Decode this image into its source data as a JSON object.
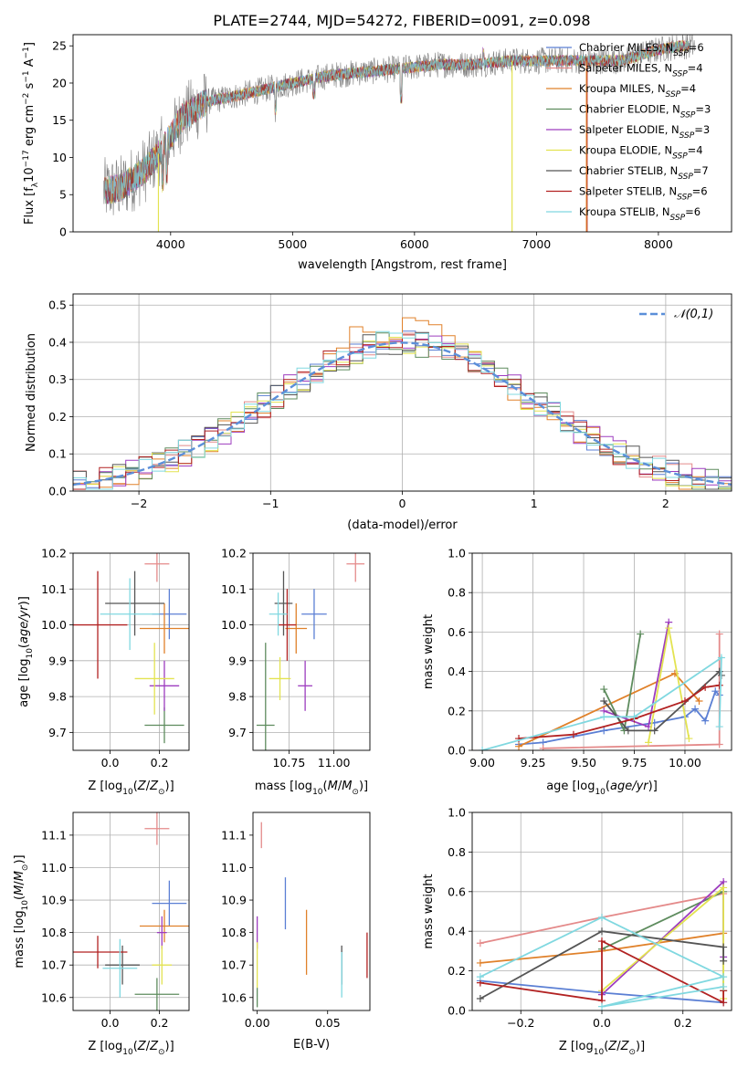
{
  "figure_title": "PLATE=2744, MJD=54272, FIBERID=0091, z=0.098",
  "chart_data": [
    {
      "id": "spectrum",
      "type": "line",
      "xlabel": "wavelength [Angstrom, rest frame]",
      "ylabel": "Flux [f_λ10^-17 erg cm^-2 s^-1 A^-1]",
      "xlim": [
        3200,
        8600
      ],
      "ylim": [
        0,
        26.5
      ],
      "xticks": [
        4000,
        5000,
        6000,
        7000,
        8000
      ],
      "yticks": [
        0,
        5,
        10,
        15,
        20,
        25
      ],
      "grid": false,
      "legend_position": "top-right",
      "observed_flux_color": "#808080",
      "continuum_shape": {
        "x": [
          3450,
          3600,
          3800,
          3950,
          4100,
          4300,
          4600,
          5000,
          5300,
          5600,
          5900,
          6200,
          6500,
          6800,
          7100,
          7400,
          7700,
          8000,
          8200,
          8300
        ],
        "y": [
          5.5,
          6.0,
          8.5,
          11.5,
          15.5,
          17.5,
          18.5,
          20.0,
          21.0,
          21.5,
          22.0,
          22.5,
          22.5,
          23.0,
          23.0,
          23.0,
          23.0,
          24.5,
          25.0,
          25.0
        ]
      },
      "series": [
        {
          "name": "Chabrier MILES, N_SSP=6",
          "color": "#5b7fd4"
        },
        {
          "name": "Salpeter MILES, N_SSP=4",
          "color": "#e48a8a"
        },
        {
          "name": "Kroupa MILES, N_SSP=4",
          "color": "#e0812a"
        },
        {
          "name": "Chabrier ELODIE, N_SSP=3",
          "color": "#5e8c5e"
        },
        {
          "name": "Salpeter ELODIE, N_SSP=3",
          "color": "#9d3dbf"
        },
        {
          "name": "Kroupa ELODIE, N_SSP=4",
          "color": "#e3e351"
        },
        {
          "name": "Chabrier STELIB, N_SSP=7",
          "color": "#555555"
        },
        {
          "name": "Salpeter STELIB, N_SSP=6",
          "color": "#b22222"
        },
        {
          "name": "Kroupa STELIB, N_SSP=6",
          "color": "#80d8e0"
        }
      ]
    },
    {
      "id": "residuals",
      "type": "step",
      "xlabel": "(data-model)/error",
      "ylabel": "Normed distribution",
      "xlim": [
        -2.5,
        2.5
      ],
      "ylim": [
        0,
        0.53
      ],
      "xticks": [
        -2,
        -1,
        0,
        1,
        2
      ],
      "yticks": [
        0.0,
        0.1,
        0.2,
        0.3,
        0.4,
        0.5
      ],
      "grid": true,
      "legend_position": "top-right",
      "gaussian_label": "𝒩(0,1)",
      "gaussian_color": "#5b8fd9",
      "bin_width": 0.1
    },
    {
      "id": "age_vs_Z",
      "type": "errorbar",
      "xlabel": "Z [log10(Z/Z⊙)]",
      "ylabel": "age [log10(age/yr)]",
      "xlim": [
        -0.15,
        0.32
      ],
      "ylim": [
        9.65,
        10.2
      ],
      "xticks": [
        0.0,
        0.2
      ],
      "yticks": [
        9.7,
        9.8,
        9.9,
        10.0,
        10.1,
        10.2
      ],
      "grid": true,
      "points": [
        {
          "x": 0.24,
          "y": 10.03,
          "xerr": 0.07,
          "yerr": 0.07,
          "color": "#5b7fd4"
        },
        {
          "x": 0.19,
          "y": 10.17,
          "xerr": 0.05,
          "yerr": 0.05,
          "color": "#e48a8a"
        },
        {
          "x": 0.22,
          "y": 9.99,
          "xerr": 0.1,
          "yerr": 0.07,
          "color": "#e0812a"
        },
        {
          "x": 0.22,
          "y": 9.72,
          "xerr": 0.08,
          "yerr": 0.05,
          "color": "#5e8c5e"
        },
        {
          "x": 0.22,
          "y": 9.83,
          "xerr": 0.06,
          "yerr": 0.07,
          "color": "#9d3dbf"
        },
        {
          "x": 0.18,
          "y": 9.85,
          "xerr": 0.08,
          "yerr": 0.1,
          "color": "#e3e351"
        },
        {
          "x": 0.1,
          "y": 10.06,
          "xerr": 0.12,
          "yerr": 0.09,
          "color": "#555555"
        },
        {
          "x": -0.05,
          "y": 10.0,
          "xerr": 0.12,
          "yerr": 0.15,
          "color": "#b22222"
        },
        {
          "x": 0.08,
          "y": 10.03,
          "xerr": 0.12,
          "yerr": 0.1,
          "color": "#80d8e0"
        }
      ]
    },
    {
      "id": "age_vs_mass",
      "type": "errorbar",
      "xlabel": "mass [log10(M/M⊙)]",
      "ylabel": "",
      "xlim": [
        10.55,
        11.2
      ],
      "ylim": [
        9.65,
        10.2
      ],
      "xticks": [
        10.75,
        11.0
      ],
      "yticks": [
        9.7,
        9.8,
        9.9,
        10.0,
        10.1,
        10.2
      ],
      "grid": true,
      "points": [
        {
          "x": 10.89,
          "y": 10.03,
          "xerr": 0.07,
          "yerr": 0.07,
          "color": "#5b7fd4"
        },
        {
          "x": 11.12,
          "y": 10.17,
          "xerr": 0.05,
          "yerr": 0.05,
          "color": "#e48a8a"
        },
        {
          "x": 10.79,
          "y": 9.99,
          "xerr": 0.06,
          "yerr": 0.07,
          "color": "#e0812a"
        },
        {
          "x": 10.62,
          "y": 9.72,
          "xerr": 0.05,
          "yerr": 0.23,
          "color": "#5e8c5e"
        },
        {
          "x": 10.84,
          "y": 9.83,
          "xerr": 0.04,
          "yerr": 0.07,
          "color": "#9d3dbf"
        },
        {
          "x": 10.7,
          "y": 9.85,
          "xerr": 0.06,
          "yerr": 0.06,
          "color": "#e3e351"
        },
        {
          "x": 10.72,
          "y": 10.06,
          "xerr": 0.05,
          "yerr": 0.09,
          "color": "#555555"
        },
        {
          "x": 10.74,
          "y": 10.0,
          "xerr": 0.05,
          "yerr": 0.1,
          "color": "#b22222"
        },
        {
          "x": 10.69,
          "y": 10.03,
          "xerr": 0.05,
          "yerr": 0.06,
          "color": "#80d8e0"
        }
      ]
    },
    {
      "id": "mass_weight_vs_age",
      "type": "line",
      "xlabel": "age [log10(age/yr)]",
      "ylabel": "mass weight",
      "xlim": [
        8.95,
        10.23
      ],
      "ylim": [
        0,
        1
      ],
      "xticks": [
        9.0,
        9.25,
        9.5,
        9.75,
        10.0
      ],
      "yticks": [
        0.0,
        0.2,
        0.4,
        0.6,
        0.8,
        1.0
      ],
      "grid": true,
      "series": [
        {
          "color": "#5b7fd4",
          "x": [
            9.18,
            9.3,
            9.6,
            9.85,
            10.0,
            10.05,
            10.1,
            10.15,
            10.17
          ],
          "y": [
            0.03,
            0.04,
            0.1,
            0.14,
            0.17,
            0.21,
            0.15,
            0.3,
            0.28
          ]
        },
        {
          "color": "#e48a8a",
          "x": [
            9.3,
            10.17,
            10.17
          ],
          "y": [
            0.01,
            0.03,
            0.59
          ]
        },
        {
          "color": "#e0812a",
          "x": [
            9.18,
            9.95,
            10.07
          ],
          "y": [
            0.02,
            0.39,
            0.25
          ]
        },
        {
          "color": "#5e8c5e",
          "x": [
            9.6,
            9.7,
            9.78
          ],
          "y": [
            0.31,
            0.1,
            0.59
          ]
        },
        {
          "color": "#9d3dbf",
          "x": [
            9.6,
            9.82,
            9.92
          ],
          "y": [
            0.2,
            0.12,
            0.65
          ]
        },
        {
          "color": "#e3e351",
          "x": [
            9.82,
            9.92,
            10.02
          ],
          "y": [
            0.04,
            0.62,
            0.06
          ]
        },
        {
          "color": "#555555",
          "x": [
            9.6,
            9.72,
            9.85,
            10.17,
            10.18
          ],
          "y": [
            0.25,
            0.1,
            0.1,
            0.4,
            0.38
          ]
        },
        {
          "color": "#b22222",
          "x": [
            9.18,
            9.45,
            9.75,
            10.0,
            10.1,
            10.17
          ],
          "y": [
            0.06,
            0.08,
            0.16,
            0.25,
            0.32,
            0.33
          ]
        },
        {
          "color": "#80d8e0",
          "x": [
            9.0,
            9.6,
            9.75,
            10.18,
            10.17
          ],
          "y": [
            0.0,
            0.17,
            0.17,
            0.47,
            0.12
          ]
        }
      ]
    },
    {
      "id": "mass_vs_Z",
      "type": "errorbar",
      "xlabel": "Z [log10(Z/Z⊙)]",
      "ylabel": "mass [log10(M/M⊙)]",
      "xlim": [
        -0.15,
        0.32
      ],
      "ylim": [
        10.56,
        11.17
      ],
      "xticks": [
        0.0,
        0.2
      ],
      "yticks": [
        10.6,
        10.7,
        10.8,
        10.9,
        11.0,
        11.1
      ],
      "grid": true,
      "points": [
        {
          "x": 0.24,
          "y": 10.89,
          "xerr": 0.07,
          "yerr": 0.07,
          "color": "#5b7fd4"
        },
        {
          "x": 0.19,
          "y": 11.12,
          "xerr": 0.05,
          "yerr": 0.05,
          "color": "#e48a8a"
        },
        {
          "x": 0.22,
          "y": 10.82,
          "xerr": 0.1,
          "yerr": 0.05,
          "color": "#e0812a"
        },
        {
          "x": 0.19,
          "y": 10.61,
          "xerr": 0.09,
          "yerr": 0.05,
          "color": "#5e8c5e"
        },
        {
          "x": 0.21,
          "y": 10.8,
          "xerr": 0.02,
          "yerr": 0.05,
          "color": "#9d3dbf"
        },
        {
          "x": 0.21,
          "y": 10.7,
          "xerr": 0.04,
          "yerr": 0.06,
          "color": "#e3e351"
        },
        {
          "x": 0.05,
          "y": 10.7,
          "xerr": 0.07,
          "yerr": 0.06,
          "color": "#555555"
        },
        {
          "x": -0.05,
          "y": 10.74,
          "xerr": 0.12,
          "yerr": 0.05,
          "color": "#b22222"
        },
        {
          "x": 0.04,
          "y": 10.69,
          "xerr": 0.07,
          "yerr": 0.09,
          "color": "#80d8e0"
        }
      ]
    },
    {
      "id": "mass_vs_ebv",
      "type": "errorbar",
      "xlabel": "E(B-V)",
      "ylabel": "",
      "xlim": [
        -0.003,
        0.08
      ],
      "ylim": [
        10.56,
        11.17
      ],
      "xticks": [
        0.0,
        0.05
      ],
      "yticks": [
        10.6,
        10.7,
        10.8,
        10.9,
        11.0,
        11.1
      ],
      "grid": false,
      "points": [
        {
          "x": 0.02,
          "y": 10.89,
          "xerr": 0,
          "yerr": 0.08,
          "color": "#5b7fd4"
        },
        {
          "x": 0.003,
          "y": 11.1,
          "xerr": 0,
          "yerr": 0.04,
          "color": "#e48a8a"
        },
        {
          "x": 0.035,
          "y": 10.77,
          "xerr": 0,
          "yerr": 0.1,
          "color": "#e0812a"
        },
        {
          "x": 0.0,
          "y": 10.6,
          "xerr": 0,
          "yerr": 0.03,
          "color": "#5e8c5e"
        },
        {
          "x": 0.0,
          "y": 10.8,
          "xerr": 0,
          "yerr": 0.05,
          "color": "#9d3dbf"
        },
        {
          "x": 0.0,
          "y": 10.7,
          "xerr": 0,
          "yerr": 0.07,
          "color": "#e3e351"
        },
        {
          "x": 0.06,
          "y": 10.7,
          "xerr": 0,
          "yerr": 0.06,
          "color": "#555555"
        },
        {
          "x": 0.078,
          "y": 10.73,
          "xerr": 0,
          "yerr": 0.07,
          "color": "#b22222"
        },
        {
          "x": 0.06,
          "y": 10.67,
          "xerr": 0,
          "yerr": 0.07,
          "color": "#80d8e0"
        }
      ]
    },
    {
      "id": "mass_weight_vs_Z",
      "type": "line",
      "xlabel": "Z [log10(Z/Z⊙)]",
      "ylabel": "mass weight",
      "xlim": [
        -0.32,
        0.32
      ],
      "ylim": [
        0,
        1
      ],
      "xticks": [
        -0.2,
        0.0,
        0.2
      ],
      "yticks": [
        0.0,
        0.2,
        0.4,
        0.6,
        0.8,
        1.0
      ],
      "grid": true,
      "series": [
        {
          "color": "#5b7fd4",
          "x": [
            -0.3,
            0.0,
            0.3
          ],
          "y": [
            0.15,
            0.09,
            0.04
          ]
        },
        {
          "color": "#e48a8a",
          "x": [
            -0.3,
            0.0,
            0.3
          ],
          "y": [
            0.34,
            0.47,
            0.59
          ]
        },
        {
          "color": "#e0812a",
          "x": [
            -0.3,
            0.0,
            0.3
          ],
          "y": [
            0.24,
            0.3,
            0.39
          ]
        },
        {
          "color": "#5e8c5e",
          "x": [
            0.0,
            0.3,
            0.3
          ],
          "y": [
            0.31,
            0.6,
            0.1
          ]
        },
        {
          "color": "#9d3dbf",
          "x": [
            0.0,
            0.3,
            0.3
          ],
          "y": [
            0.08,
            0.65,
            0.27
          ]
        },
        {
          "color": "#e3e351",
          "x": [
            0.0,
            0.3,
            0.3
          ],
          "y": [
            0.1,
            0.62,
            0.06
          ]
        },
        {
          "color": "#555555",
          "x": [
            -0.3,
            0.0,
            0.3,
            0.3
          ],
          "y": [
            0.06,
            0.4,
            0.32,
            0.25
          ]
        },
        {
          "color": "#b22222",
          "x": [
            -0.3,
            0.0,
            0.0,
            0.3,
            0.3
          ],
          "y": [
            0.14,
            0.05,
            0.35,
            0.04,
            0.1
          ]
        },
        {
          "color": "#80d8e0",
          "x": [
            -0.3,
            0.0,
            0.3,
            0.0,
            0.3
          ],
          "y": [
            0.17,
            0.47,
            0.17,
            0.02,
            0.12
          ]
        }
      ]
    }
  ]
}
